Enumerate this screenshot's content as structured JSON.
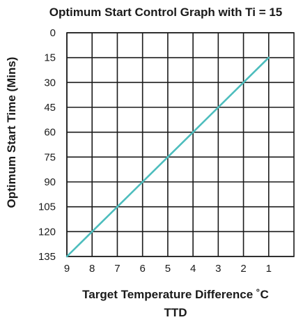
{
  "chart_data": {
    "type": "line",
    "title": "Optimum Start Control Graph with Ti = 15",
    "xlabel": "Target Temperature Difference ˚C",
    "xlabel2": "TTD",
    "ylabel": "Optimum Start Time (Mins)",
    "x_ticks": [
      "9",
      "8",
      "7",
      "6",
      "5",
      "4",
      "3",
      "2",
      "1"
    ],
    "y_ticks": [
      "0",
      "15",
      "30",
      "45",
      "60",
      "75",
      "90",
      "105",
      "120",
      "135"
    ],
    "xlim": [
      9,
      0
    ],
    "ylim": [
      135,
      0
    ],
    "x_reversed": true,
    "y_inverted": true,
    "grid": true,
    "series": [
      {
        "color": "#4dbdbd",
        "x": [
          9,
          8,
          7,
          6,
          5,
          4,
          3,
          2,
          1
        ],
        "y": [
          135,
          120,
          105,
          90,
          75,
          60,
          45,
          30,
          15
        ]
      }
    ]
  }
}
